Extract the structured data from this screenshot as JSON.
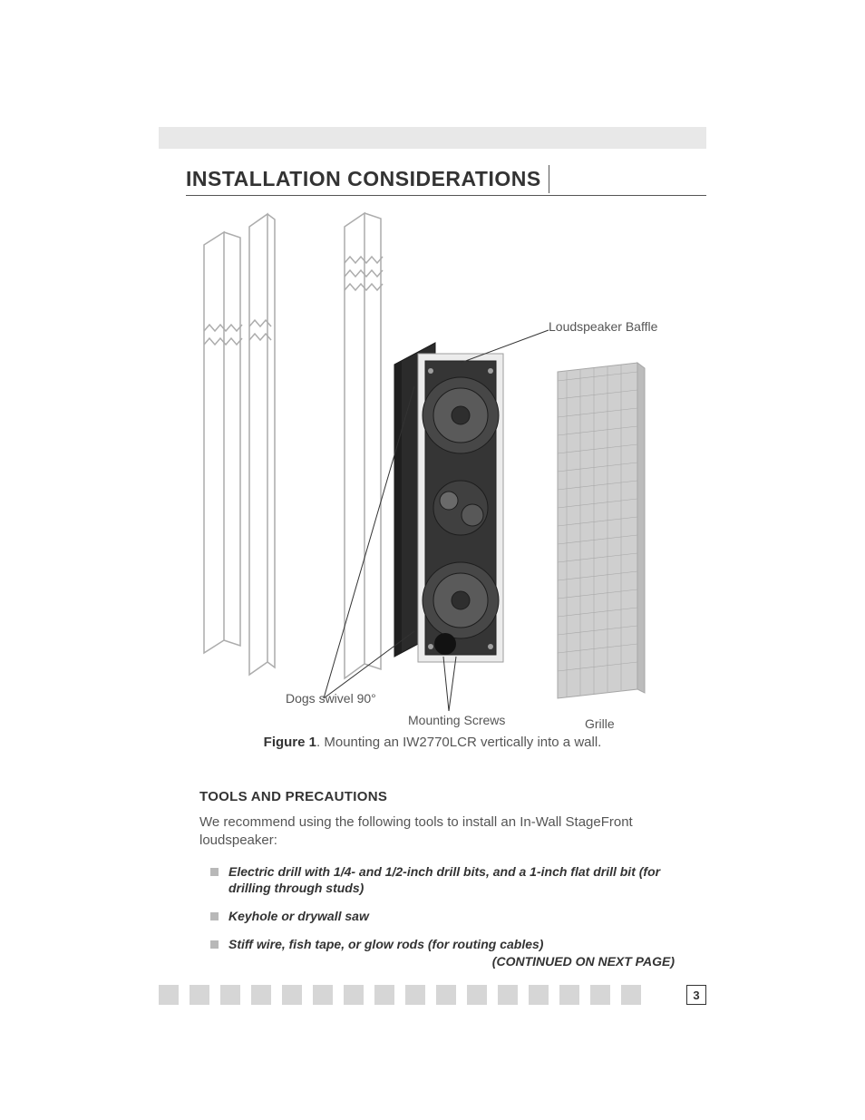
{
  "page": {
    "section_title": "INSTALLATION CONSIDERATIONS",
    "page_number": "3",
    "continued": "(CONTINUED ON NEXT PAGE)"
  },
  "figure": {
    "caption_bold": "Figure 1",
    "caption_rest": ". Mounting an IW2770LCR vertically into a wall.",
    "labels": {
      "baffle": "Loudspeaker Baffle",
      "dogs": "Dogs swivel 90°",
      "screws": "Mounting Screws",
      "grille": "Grille"
    },
    "colors": {
      "line_art": "#acacac",
      "speaker_body": "#3e3e3e",
      "speaker_frame": "#e6e6e6",
      "grille_fill": "#cfcfcf",
      "callout_line": "#333333"
    }
  },
  "body": {
    "subhead": "TOOLS AND PRECAUTIONS",
    "intro": "We recommend using the following tools to install an In-Wall StageFront loudspeaker:",
    "bullets": [
      "Electric drill with 1/4- and 1/2-inch drill bits, and a 1-inch flat drill bit (for drilling through studs)",
      "Keyhole or drywall saw",
      "Stiff wire, fish tape, or glow rods (for routing cables)"
    ]
  },
  "footer": {
    "square_count": 16
  }
}
